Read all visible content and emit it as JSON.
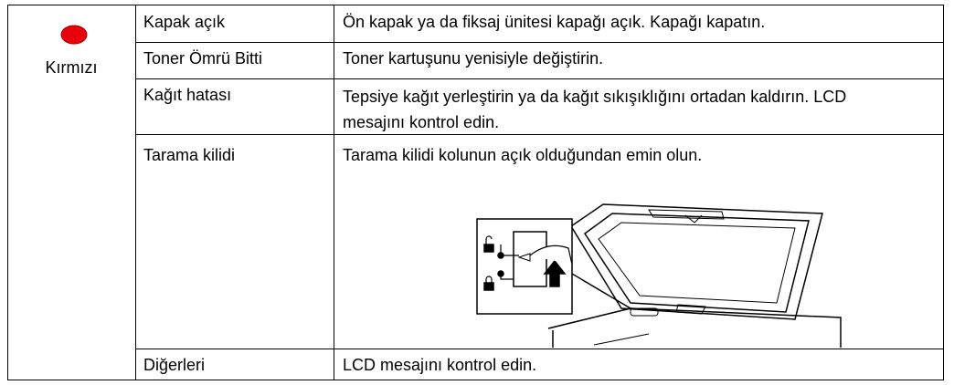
{
  "status": {
    "label": "Kırmızı"
  },
  "rows": [
    {
      "name": "Kapak açık",
      "action": "Ön kapak ya da fiksaj ünitesi kapağı açık. Kapağı kapatın."
    },
    {
      "name": "Toner Ömrü Bitti",
      "action": "Toner kartuşunu yenisiyle değiştirin."
    },
    {
      "name": "Kağıt hatası",
      "action": "Tepsiye kağıt yerleştirin ya da kağıt sıkışıklığını ortadan kaldırın. LCD mesajını kontrol edin."
    },
    {
      "name": "Tarama kilidi",
      "action": "Tarama kilidi kolunun açık olduğundan emin olun."
    },
    {
      "name": "Diğerleri",
      "action": "LCD mesajını kontrol edin."
    }
  ]
}
